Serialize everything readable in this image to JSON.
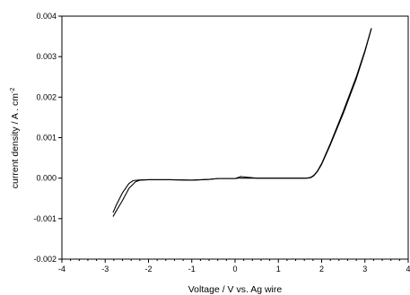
{
  "chart_data": {
    "type": "line",
    "title": "",
    "xlabel": "Voltage / V vs. Ag wire",
    "ylabel_main": "current density / A . cm",
    "ylabel_sup": "-2",
    "xlim": [
      -4,
      4
    ],
    "ylim": [
      -0.002,
      0.004
    ],
    "xticks": [
      -4,
      -3,
      -2,
      -1,
      0,
      1,
      2,
      3,
      4
    ],
    "yticks": [
      -0.002,
      -0.001,
      0.0,
      0.001,
      0.002,
      0.003,
      0.004
    ],
    "xtick_labels": [
      "-4",
      "-3",
      "-2",
      "-1",
      "0",
      "1",
      "2",
      "3",
      "4"
    ],
    "ytick_labels": [
      "-0.002",
      "-0.001",
      "0.000",
      "0.001",
      "0.002",
      "0.003",
      "0.004"
    ],
    "x_minor_step": 0.2,
    "grid": false,
    "legend": "none",
    "line_color": "#000000",
    "series": [
      {
        "x": [
          -2.82,
          -2.75,
          -2.6,
          -2.45,
          -2.35,
          -2.2,
          -2.0,
          -1.5,
          -1.0,
          -0.6,
          -0.4,
          0.0,
          0.08,
          0.12,
          0.2,
          0.5,
          1.0,
          1.5,
          1.65,
          1.75,
          1.82,
          1.9,
          2.0,
          2.2,
          2.5,
          2.8,
          3.0,
          3.15
        ],
        "y": [
          -0.00085,
          -0.00068,
          -0.00036,
          -0.00013,
          -6e-05,
          -4.5e-05,
          -4e-05,
          -4e-05,
          -5e-05,
          -3e-05,
          -1e-05,
          -1e-05,
          2e-05,
          0.0,
          0.0,
          0.0,
          0.0,
          0.0,
          0.0,
          2e-05,
          7e-05,
          0.00017,
          0.00036,
          0.00085,
          0.00165,
          0.0025,
          0.00315,
          0.0037
        ]
      },
      {
        "x": [
          3.15,
          3.0,
          2.8,
          2.5,
          2.2,
          2.0,
          1.9,
          1.82,
          1.75,
          1.65,
          1.5,
          1.0,
          0.5,
          0.12,
          0.08,
          0.0,
          -0.4,
          -0.6,
          -1.0,
          -1.5,
          -2.0,
          -2.2,
          -2.3,
          -2.45,
          -2.6,
          -2.75,
          -2.82
        ],
        "y": [
          0.0037,
          0.00312,
          0.00245,
          0.0016,
          0.00082,
          0.00034,
          0.00016,
          6e-05,
          1e-05,
          0.0,
          0.0,
          0.0,
          0.0,
          4e-05,
          0.0,
          -1e-05,
          -1e-05,
          -3e-05,
          -5e-05,
          -4e-05,
          -4e-05,
          -5e-05,
          -9e-05,
          -0.00025,
          -0.00055,
          -0.00082,
          -0.00095
        ]
      }
    ]
  }
}
